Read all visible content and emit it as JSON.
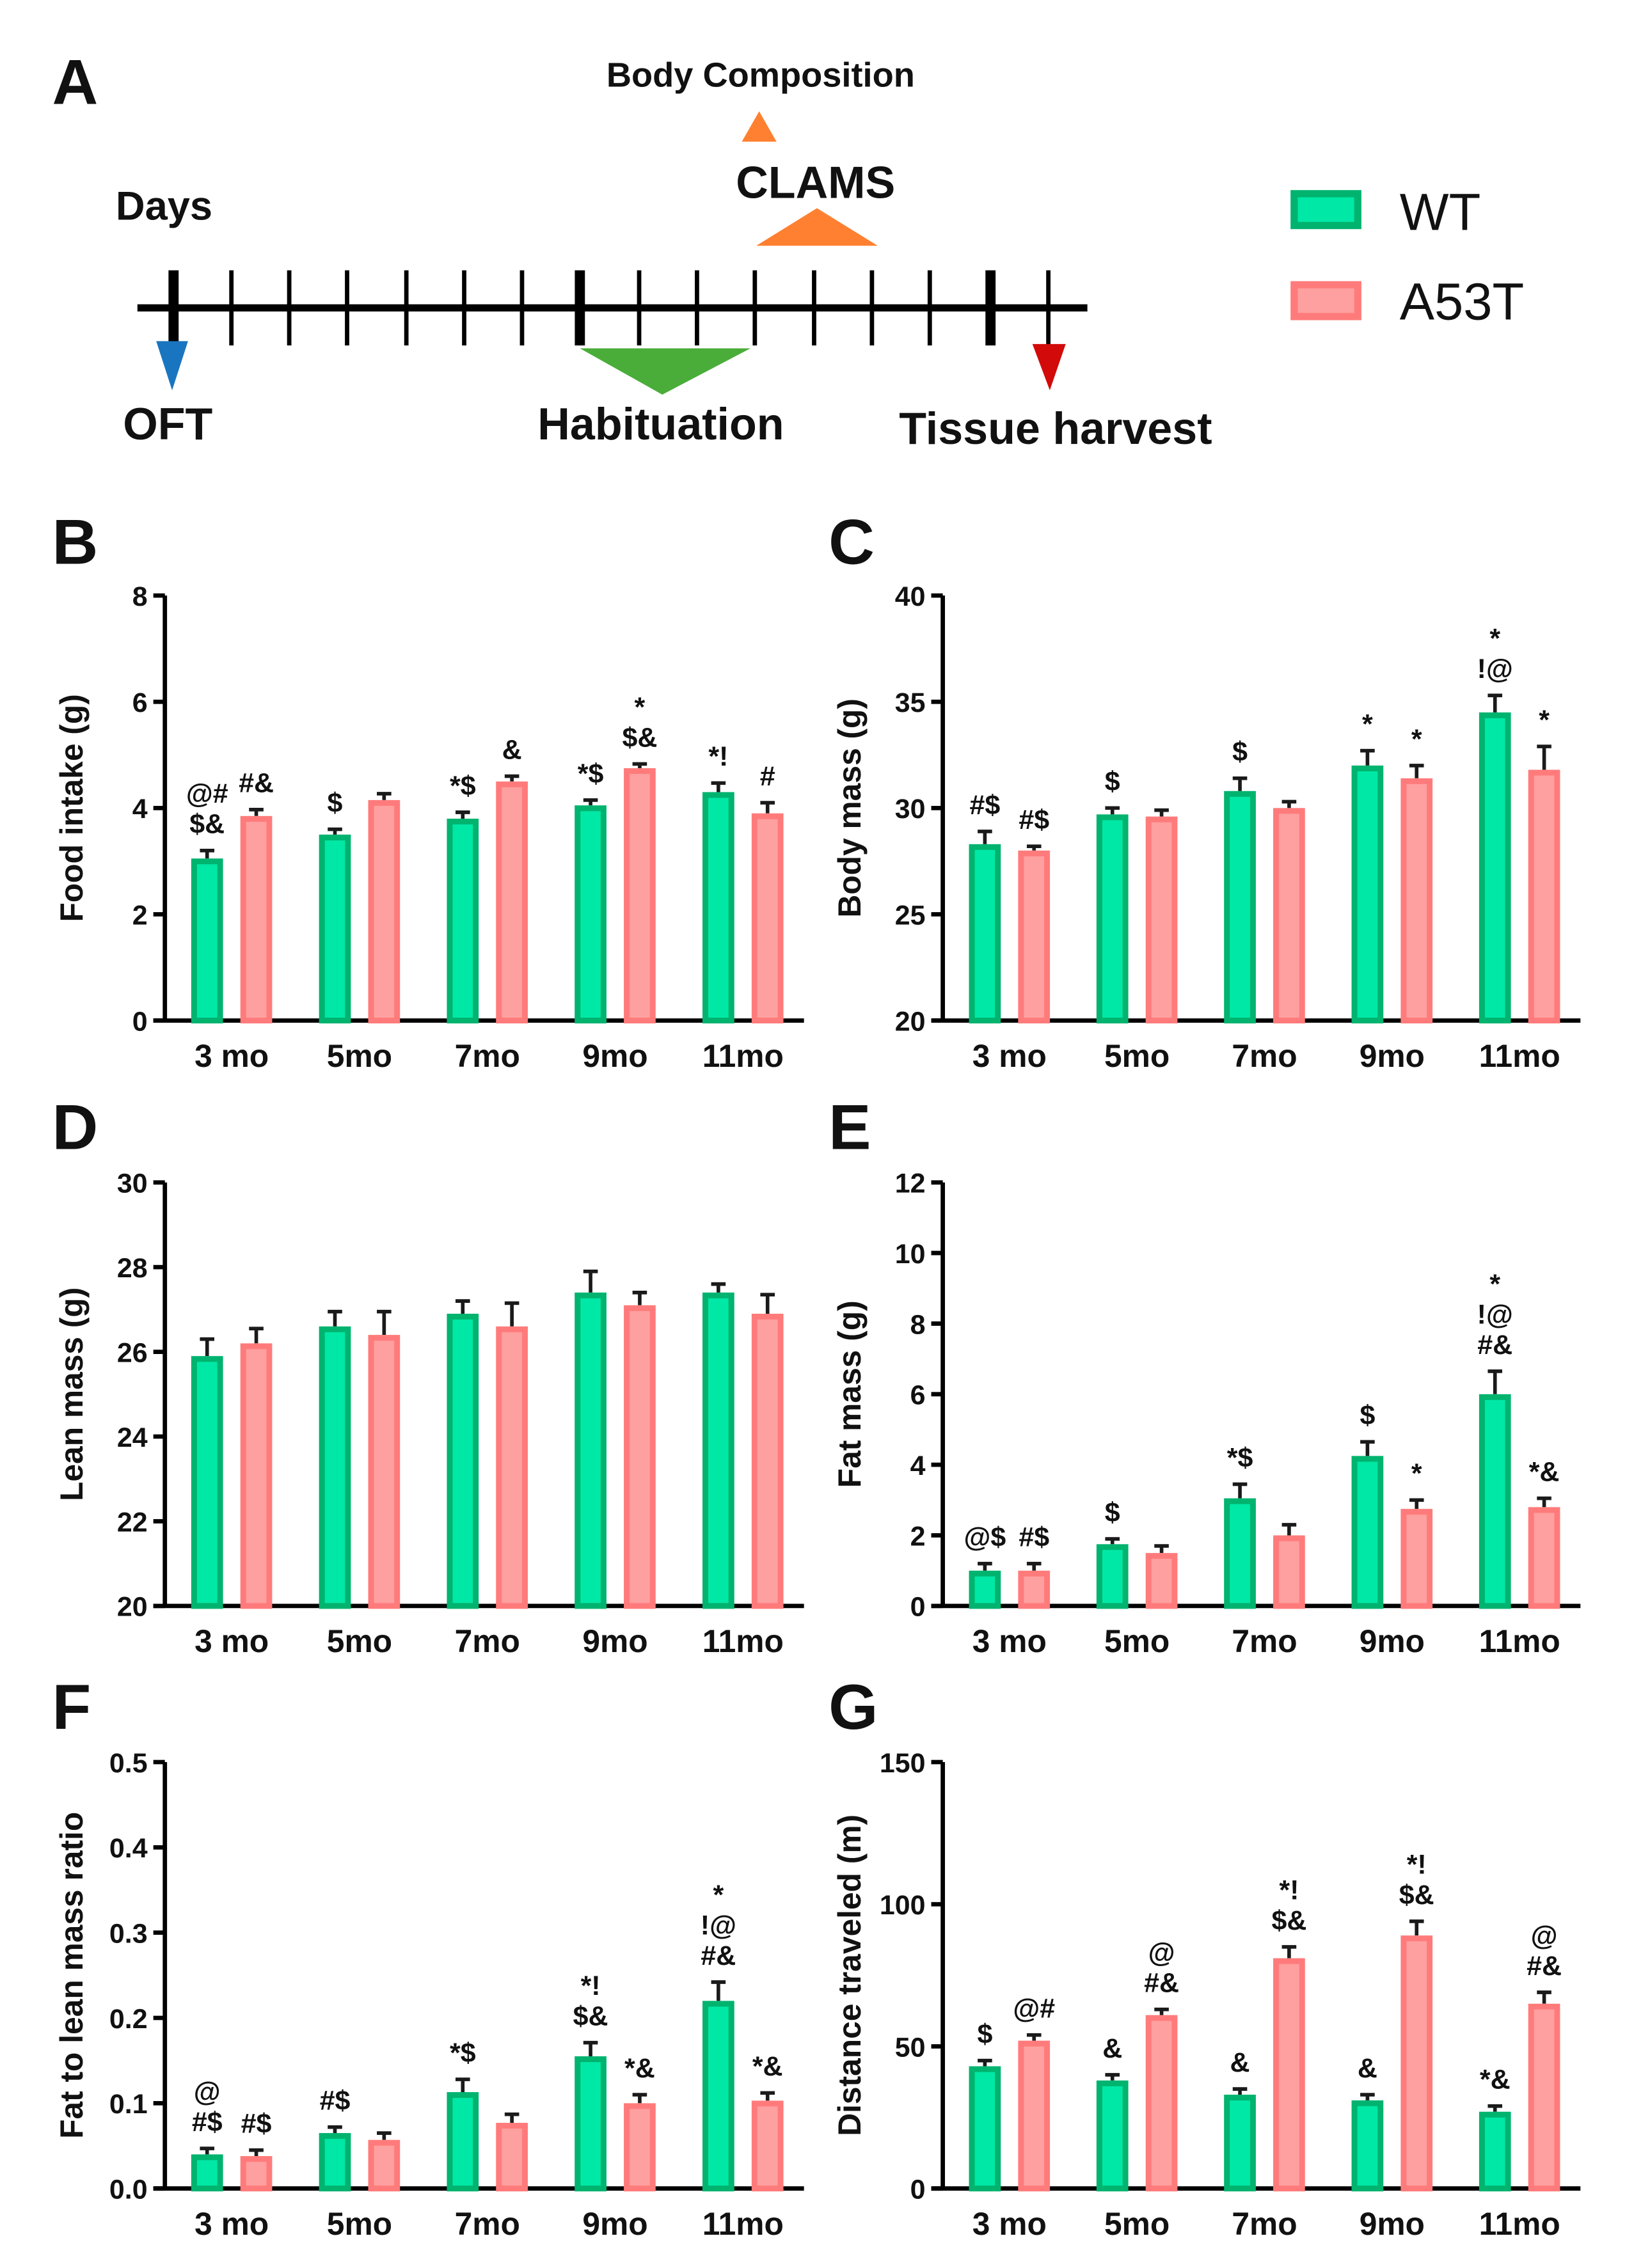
{
  "panel_letters": {
    "a": "A",
    "b": "B",
    "c": "C",
    "d": "D",
    "e": "E",
    "f": "F",
    "g": "G"
  },
  "timeline": {
    "days_label": "Days",
    "events": {
      "body_composition": "Body Composition",
      "clams": "CLAMS",
      "oft": "OFT",
      "habituation": "Habituation",
      "tissue_harvest": "Tissue harvest"
    },
    "colors": {
      "oft": "#1a75c0",
      "habituation": "#4aad3a",
      "tissue_harvest": "#d20a0a",
      "clams": "#ff8030",
      "body_composition": "#ff8030"
    }
  },
  "legend": {
    "items": [
      {
        "label": "WT",
        "fill": "#00e8a6",
        "stroke": "#00b36f"
      },
      {
        "label": "A53T",
        "fill": "#ffa0a0",
        "stroke": "#ff7b7b"
      }
    ]
  },
  "chart_data": [
    {
      "id": "B",
      "type": "bar",
      "ylabel": "Food intake (g)",
      "ylim": [
        0,
        8
      ],
      "yticks": [
        "0",
        "2",
        "4",
        "6",
        "8"
      ],
      "categories": [
        "3 mo",
        "5mo",
        "7mo",
        "9mo",
        "11mo"
      ],
      "series": [
        {
          "name": "WT",
          "values": [
            3.05,
            3.5,
            3.8,
            4.05,
            4.3
          ],
          "errors": [
            0.15,
            0.1,
            0.12,
            0.1,
            0.17
          ],
          "annotations": [
            "@#\n$&",
            "$",
            "*$",
            "*$",
            "*!"
          ]
        },
        {
          "name": "A53T",
          "values": [
            3.85,
            4.15,
            4.5,
            4.75,
            3.9
          ],
          "errors": [
            0.12,
            0.12,
            0.1,
            0.08,
            0.2
          ],
          "annotations": [
            "#&",
            "",
            "&",
            "*\n$&",
            "#"
          ]
        }
      ]
    },
    {
      "id": "C",
      "type": "bar",
      "ylabel": "Body mass (g)",
      "ylim": [
        20,
        40
      ],
      "yticks": [
        "20",
        "25",
        "30",
        "35",
        "40"
      ],
      "categories": [
        "3 mo",
        "5mo",
        "7mo",
        "9mo",
        "11mo"
      ],
      "series": [
        {
          "name": "WT",
          "values": [
            28.3,
            29.7,
            30.8,
            32.0,
            34.5
          ],
          "errors": [
            0.6,
            0.3,
            0.6,
            0.7,
            0.8
          ],
          "annotations": [
            "#$",
            "$",
            "$",
            "*",
            "*\n!@"
          ]
        },
        {
          "name": "A53T",
          "values": [
            28.0,
            29.6,
            30.0,
            31.4,
            31.8
          ],
          "errors": [
            0.2,
            0.3,
            0.3,
            0.6,
            1.1
          ],
          "annotations": [
            "#$",
            "",
            "",
            "*",
            "*"
          ]
        }
      ]
    },
    {
      "id": "D",
      "type": "bar",
      "ylabel": "Lean mass (g)",
      "ylim": [
        20,
        30
      ],
      "yticks": [
        "20",
        "22",
        "24",
        "26",
        "28",
        "30"
      ],
      "categories": [
        "3 mo",
        "5mo",
        "7mo",
        "9mo",
        "11mo"
      ],
      "series": [
        {
          "name": "WT",
          "values": [
            25.9,
            26.6,
            26.9,
            27.4,
            27.4
          ],
          "errors": [
            0.4,
            0.35,
            0.3,
            0.5,
            0.2
          ],
          "annotations": [
            "",
            "",
            "",
            "",
            ""
          ]
        },
        {
          "name": "A53T",
          "values": [
            26.2,
            26.4,
            26.6,
            27.1,
            26.9
          ],
          "errors": [
            0.35,
            0.55,
            0.55,
            0.3,
            0.45
          ],
          "annotations": [
            "",
            "",
            "",
            "",
            ""
          ]
        }
      ]
    },
    {
      "id": "E",
      "type": "bar",
      "ylabel": "Fat mass (g)",
      "ylim": [
        0,
        12
      ],
      "yticks": [
        "0",
        "2",
        "4",
        "6",
        "8",
        "10",
        "12"
      ],
      "categories": [
        "3 mo",
        "5mo",
        "7mo",
        "9mo",
        "11mo"
      ],
      "series": [
        {
          "name": "WT",
          "values": [
            1.0,
            1.75,
            3.05,
            4.25,
            6.0
          ],
          "errors": [
            0.2,
            0.15,
            0.4,
            0.4,
            0.65
          ],
          "annotations": [
            "@$",
            "$",
            "*$",
            "$",
            "*\n!@\n#&"
          ]
        },
        {
          "name": "A53T",
          "values": [
            1.0,
            1.5,
            2.0,
            2.75,
            2.8
          ],
          "errors": [
            0.2,
            0.2,
            0.3,
            0.25,
            0.25
          ],
          "annotations": [
            "#$",
            "",
            "",
            "*",
            "*&"
          ]
        }
      ]
    },
    {
      "id": "F",
      "type": "bar",
      "ylabel": "Fat to lean mass ratio",
      "ylim": [
        0,
        0.5
      ],
      "yticks": [
        "0.0",
        "0.1",
        "0.2",
        "0.3",
        "0.4",
        "0.5"
      ],
      "categories": [
        "3 mo",
        "5mo",
        "7mo",
        "9mo",
        "11mo"
      ],
      "series": [
        {
          "name": "WT",
          "values": [
            0.04,
            0.065,
            0.113,
            0.155,
            0.22
          ],
          "errors": [
            0.007,
            0.007,
            0.015,
            0.016,
            0.022
          ],
          "annotations": [
            "@\n#$",
            "#$",
            "*$",
            "*!\n$&",
            "*\n!@\n#&"
          ]
        },
        {
          "name": "A53T",
          "values": [
            0.038,
            0.057,
            0.077,
            0.1,
            0.103
          ],
          "errors": [
            0.007,
            0.008,
            0.01,
            0.01,
            0.009
          ],
          "annotations": [
            "#$",
            "",
            "",
            "*&",
            "*&"
          ]
        }
      ]
    },
    {
      "id": "G",
      "type": "bar",
      "ylabel": "Distance traveled (m)",
      "ylim": [
        0,
        150
      ],
      "yticks": [
        "0",
        "50",
        "100",
        "150"
      ],
      "categories": [
        "3 mo",
        "5mo",
        "7mo",
        "9mo",
        "11mo"
      ],
      "series": [
        {
          "name": "WT",
          "values": [
            43,
            38,
            33,
            31,
            27
          ],
          "errors": [
            2,
            2,
            2,
            2,
            2
          ],
          "annotations": [
            "$",
            "&",
            "&",
            "&",
            "*&"
          ]
        },
        {
          "name": "A53T",
          "values": [
            52,
            61,
            81,
            89,
            65
          ],
          "errors": [
            2,
            2,
            4,
            5,
            4
          ],
          "annotations": [
            "@#",
            "@\n#&",
            "*!\n$&",
            "*!\n$&",
            "@\n#&"
          ]
        }
      ]
    }
  ]
}
